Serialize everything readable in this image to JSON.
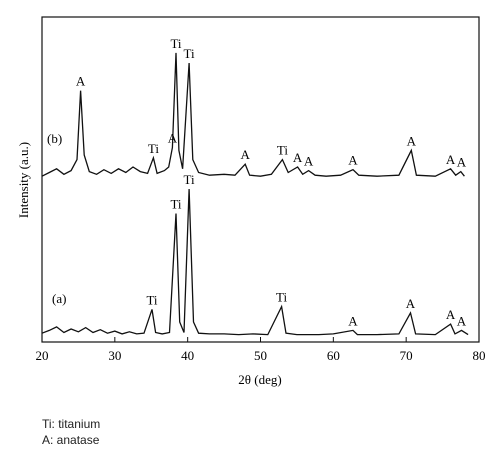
{
  "chart_data": {
    "type": "line",
    "xlabel": "2θ (deg)",
    "ylabel": "Intensity (a.u.)",
    "xlim": [
      20,
      80
    ],
    "xticks": [
      "20",
      "30",
      "40",
      "50",
      "60",
      "70",
      "80"
    ],
    "grid": false,
    "legend": [
      "Ti: titanium",
      "A: anatase"
    ],
    "series": [
      {
        "name": "(b)",
        "points": [
          [
            20,
            0.02
          ],
          [
            21,
            0.06
          ],
          [
            22,
            0.1
          ],
          [
            23,
            0.04
          ],
          [
            24,
            0.08
          ],
          [
            24.8,
            0.2
          ],
          [
            25.3,
            0.95
          ],
          [
            25.8,
            0.25
          ],
          [
            26.5,
            0.07
          ],
          [
            27.5,
            0.04
          ],
          [
            28.5,
            0.09
          ],
          [
            29.5,
            0.05
          ],
          [
            30.5,
            0.1
          ],
          [
            31.5,
            0.06
          ],
          [
            32.5,
            0.12
          ],
          [
            33.5,
            0.07
          ],
          [
            34.5,
            0.05
          ],
          [
            35.3,
            0.22
          ],
          [
            35.8,
            0.05
          ],
          [
            36.8,
            0.08
          ],
          [
            37.4,
            0.12
          ],
          [
            37.9,
            0.33
          ],
          [
            38.4,
            1.36
          ],
          [
            38.8,
            0.3
          ],
          [
            39.3,
            0.1
          ],
          [
            40.2,
            1.25
          ],
          [
            40.7,
            0.2
          ],
          [
            41.5,
            0.06
          ],
          [
            43,
            0.03
          ],
          [
            45,
            0.04
          ],
          [
            46.5,
            0.03
          ],
          [
            47.9,
            0.15
          ],
          [
            48.5,
            0.03
          ],
          [
            50,
            0.02
          ],
          [
            51.5,
            0.04
          ],
          [
            53,
            0.2
          ],
          [
            53.8,
            0.06
          ],
          [
            55.1,
            0.12
          ],
          [
            55.8,
            0.04
          ],
          [
            56.6,
            0.08
          ],
          [
            57.5,
            0.03
          ],
          [
            59,
            0.02
          ],
          [
            61,
            0.03
          ],
          [
            62.7,
            0.09
          ],
          [
            63.5,
            0.03
          ],
          [
            66,
            0.02
          ],
          [
            69,
            0.03
          ],
          [
            70.7,
            0.3
          ],
          [
            71.4,
            0.03
          ],
          [
            74,
            0.02
          ],
          [
            76.1,
            0.1
          ],
          [
            76.8,
            0.03
          ],
          [
            77.5,
            0.07
          ],
          [
            78,
            0.02
          ]
        ]
      },
      {
        "name": "(a)",
        "points": [
          [
            20,
            0.04
          ],
          [
            21,
            0.08
          ],
          [
            22,
            0.13
          ],
          [
            23,
            0.05
          ],
          [
            24,
            0.1
          ],
          [
            25,
            0.06
          ],
          [
            26,
            0.12
          ],
          [
            27,
            0.05
          ],
          [
            28,
            0.09
          ],
          [
            29,
            0.04
          ],
          [
            30,
            0.07
          ],
          [
            31,
            0.03
          ],
          [
            32,
            0.06
          ],
          [
            33,
            0.03
          ],
          [
            34,
            0.04
          ],
          [
            35.1,
            0.38
          ],
          [
            35.6,
            0.05
          ],
          [
            36.5,
            0.03
          ],
          [
            37.5,
            0.05
          ],
          [
            38.4,
            1.75
          ],
          [
            38.9,
            0.2
          ],
          [
            39.5,
            0.05
          ],
          [
            40.2,
            2.1
          ],
          [
            40.8,
            0.2
          ],
          [
            41.5,
            0.04
          ],
          [
            43,
            0.03
          ],
          [
            45,
            0.03
          ],
          [
            47,
            0.02
          ],
          [
            49,
            0.03
          ],
          [
            51,
            0.02
          ],
          [
            52.9,
            0.42
          ],
          [
            53.5,
            0.04
          ],
          [
            55,
            0.02
          ],
          [
            58,
            0.02
          ],
          [
            60,
            0.03
          ],
          [
            62.7,
            0.08
          ],
          [
            63.3,
            0.02
          ],
          [
            66,
            0.02
          ],
          [
            69,
            0.03
          ],
          [
            70.6,
            0.33
          ],
          [
            71.3,
            0.03
          ],
          [
            74,
            0.02
          ],
          [
            76.1,
            0.17
          ],
          [
            76.7,
            0.03
          ],
          [
            77.6,
            0.08
          ],
          [
            78.5,
            0.02
          ]
        ]
      }
    ],
    "annotations": [
      {
        "series": "(b)",
        "x": 25.3,
        "label": "A"
      },
      {
        "series": "(b)",
        "x": 35.3,
        "label": "Ti"
      },
      {
        "series": "(b)",
        "x": 37.9,
        "label": "A"
      },
      {
        "series": "(b)",
        "x": 38.4,
        "label": "Ti"
      },
      {
        "series": "(b)",
        "x": 40.2,
        "label": "Ti"
      },
      {
        "series": "(b)",
        "x": 47.9,
        "label": "A"
      },
      {
        "series": "(b)",
        "x": 53.0,
        "label": "Ti"
      },
      {
        "series": "(b)",
        "x": 55.1,
        "label": "A"
      },
      {
        "series": "(b)",
        "x": 56.6,
        "label": "A"
      },
      {
        "series": "(b)",
        "x": 62.7,
        "label": "A"
      },
      {
        "series": "(b)",
        "x": 70.7,
        "label": "A"
      },
      {
        "series": "(b)",
        "x": 76.1,
        "label": "A"
      },
      {
        "series": "(b)",
        "x": 77.6,
        "label": "A"
      },
      {
        "series": "(a)",
        "x": 35.1,
        "label": "Ti"
      },
      {
        "series": "(a)",
        "x": 38.4,
        "label": "Ti"
      },
      {
        "series": "(a)",
        "x": 40.2,
        "label": "Ti"
      },
      {
        "series": "(a)",
        "x": 52.9,
        "label": "Ti"
      },
      {
        "series": "(a)",
        "x": 62.7,
        "label": "A"
      },
      {
        "series": "(a)",
        "x": 70.6,
        "label": "A"
      },
      {
        "series": "(a)",
        "x": 76.1,
        "label": "A"
      },
      {
        "series": "(a)",
        "x": 77.6,
        "label": "A"
      }
    ]
  }
}
